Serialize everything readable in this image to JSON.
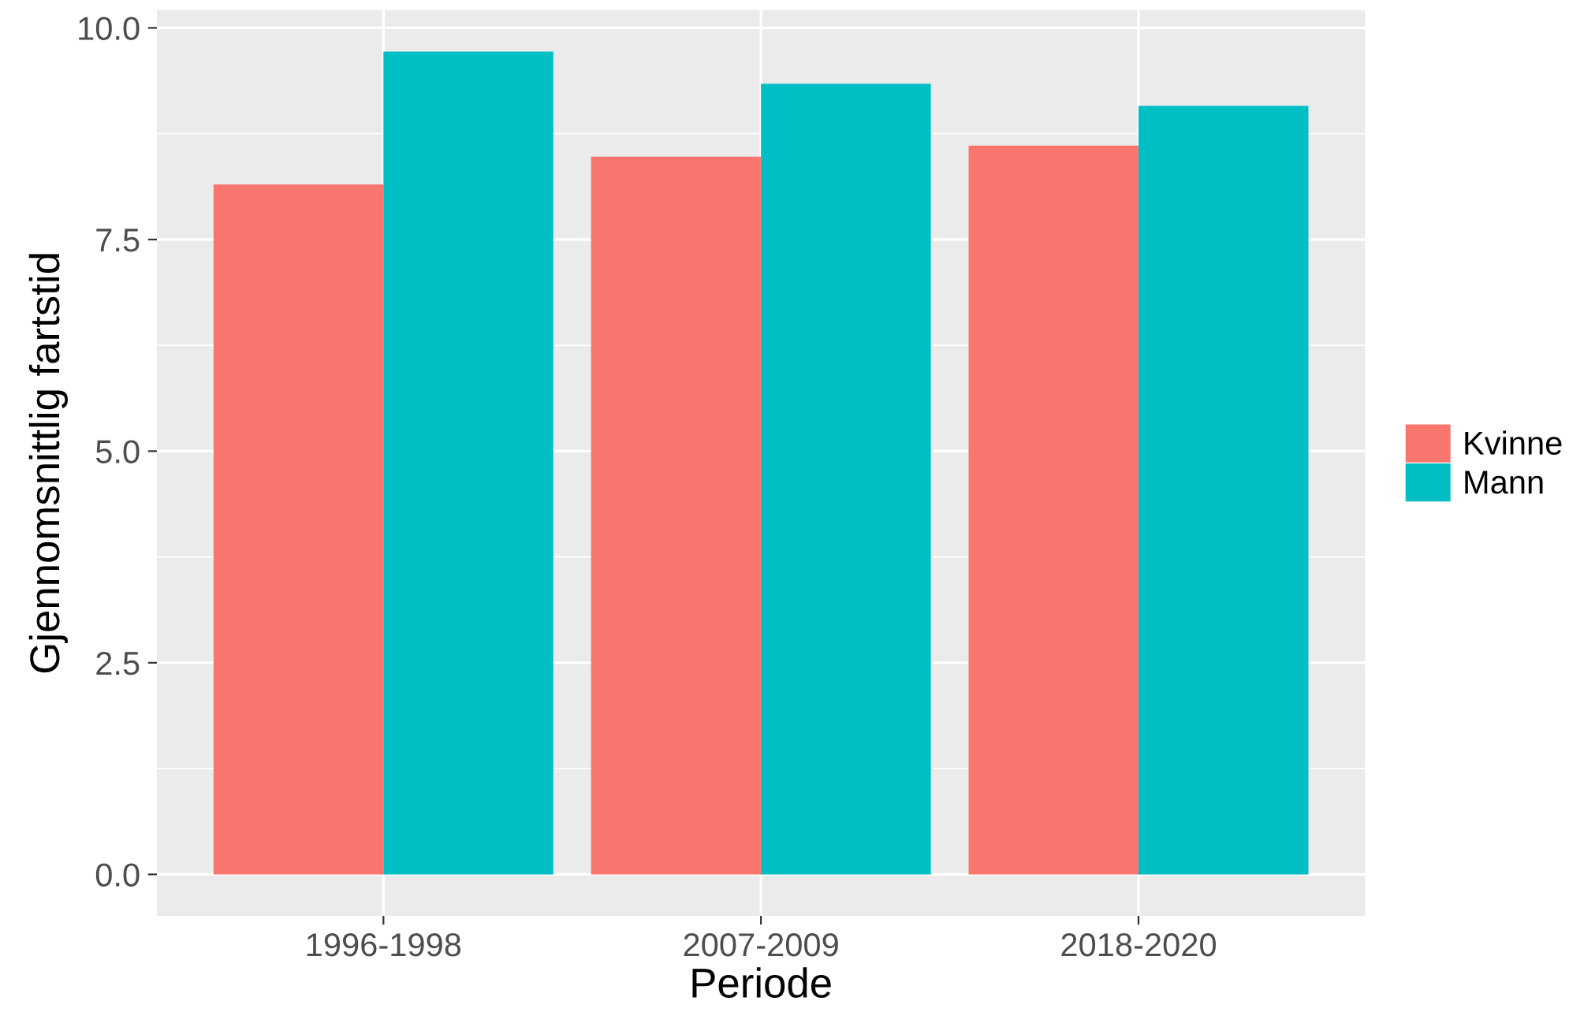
{
  "chart_data": {
    "type": "bar",
    "xlabel": "Periode",
    "ylabel": "Gjennomsnittlig fartstid",
    "categories": [
      "1996-1998",
      "2007-2009",
      "2018-2020"
    ],
    "series": [
      {
        "name": "Kvinne",
        "color": "#f8766d",
        "values": [
          8.15,
          8.48,
          8.61
        ]
      },
      {
        "name": "Mann",
        "color": "#00bfc4",
        "values": [
          9.72,
          9.34,
          9.08
        ]
      }
    ],
    "ylim": [
      -0.49,
      10.21
    ],
    "yticks": [
      {
        "value": 0,
        "label": "0.0"
      },
      {
        "value": 2.5,
        "label": "2.5"
      },
      {
        "value": 5,
        "label": "5.0"
      },
      {
        "value": 7.5,
        "label": "7.5"
      },
      {
        "value": 10,
        "label": "10.0"
      }
    ],
    "grid": true,
    "legend": "right"
  }
}
